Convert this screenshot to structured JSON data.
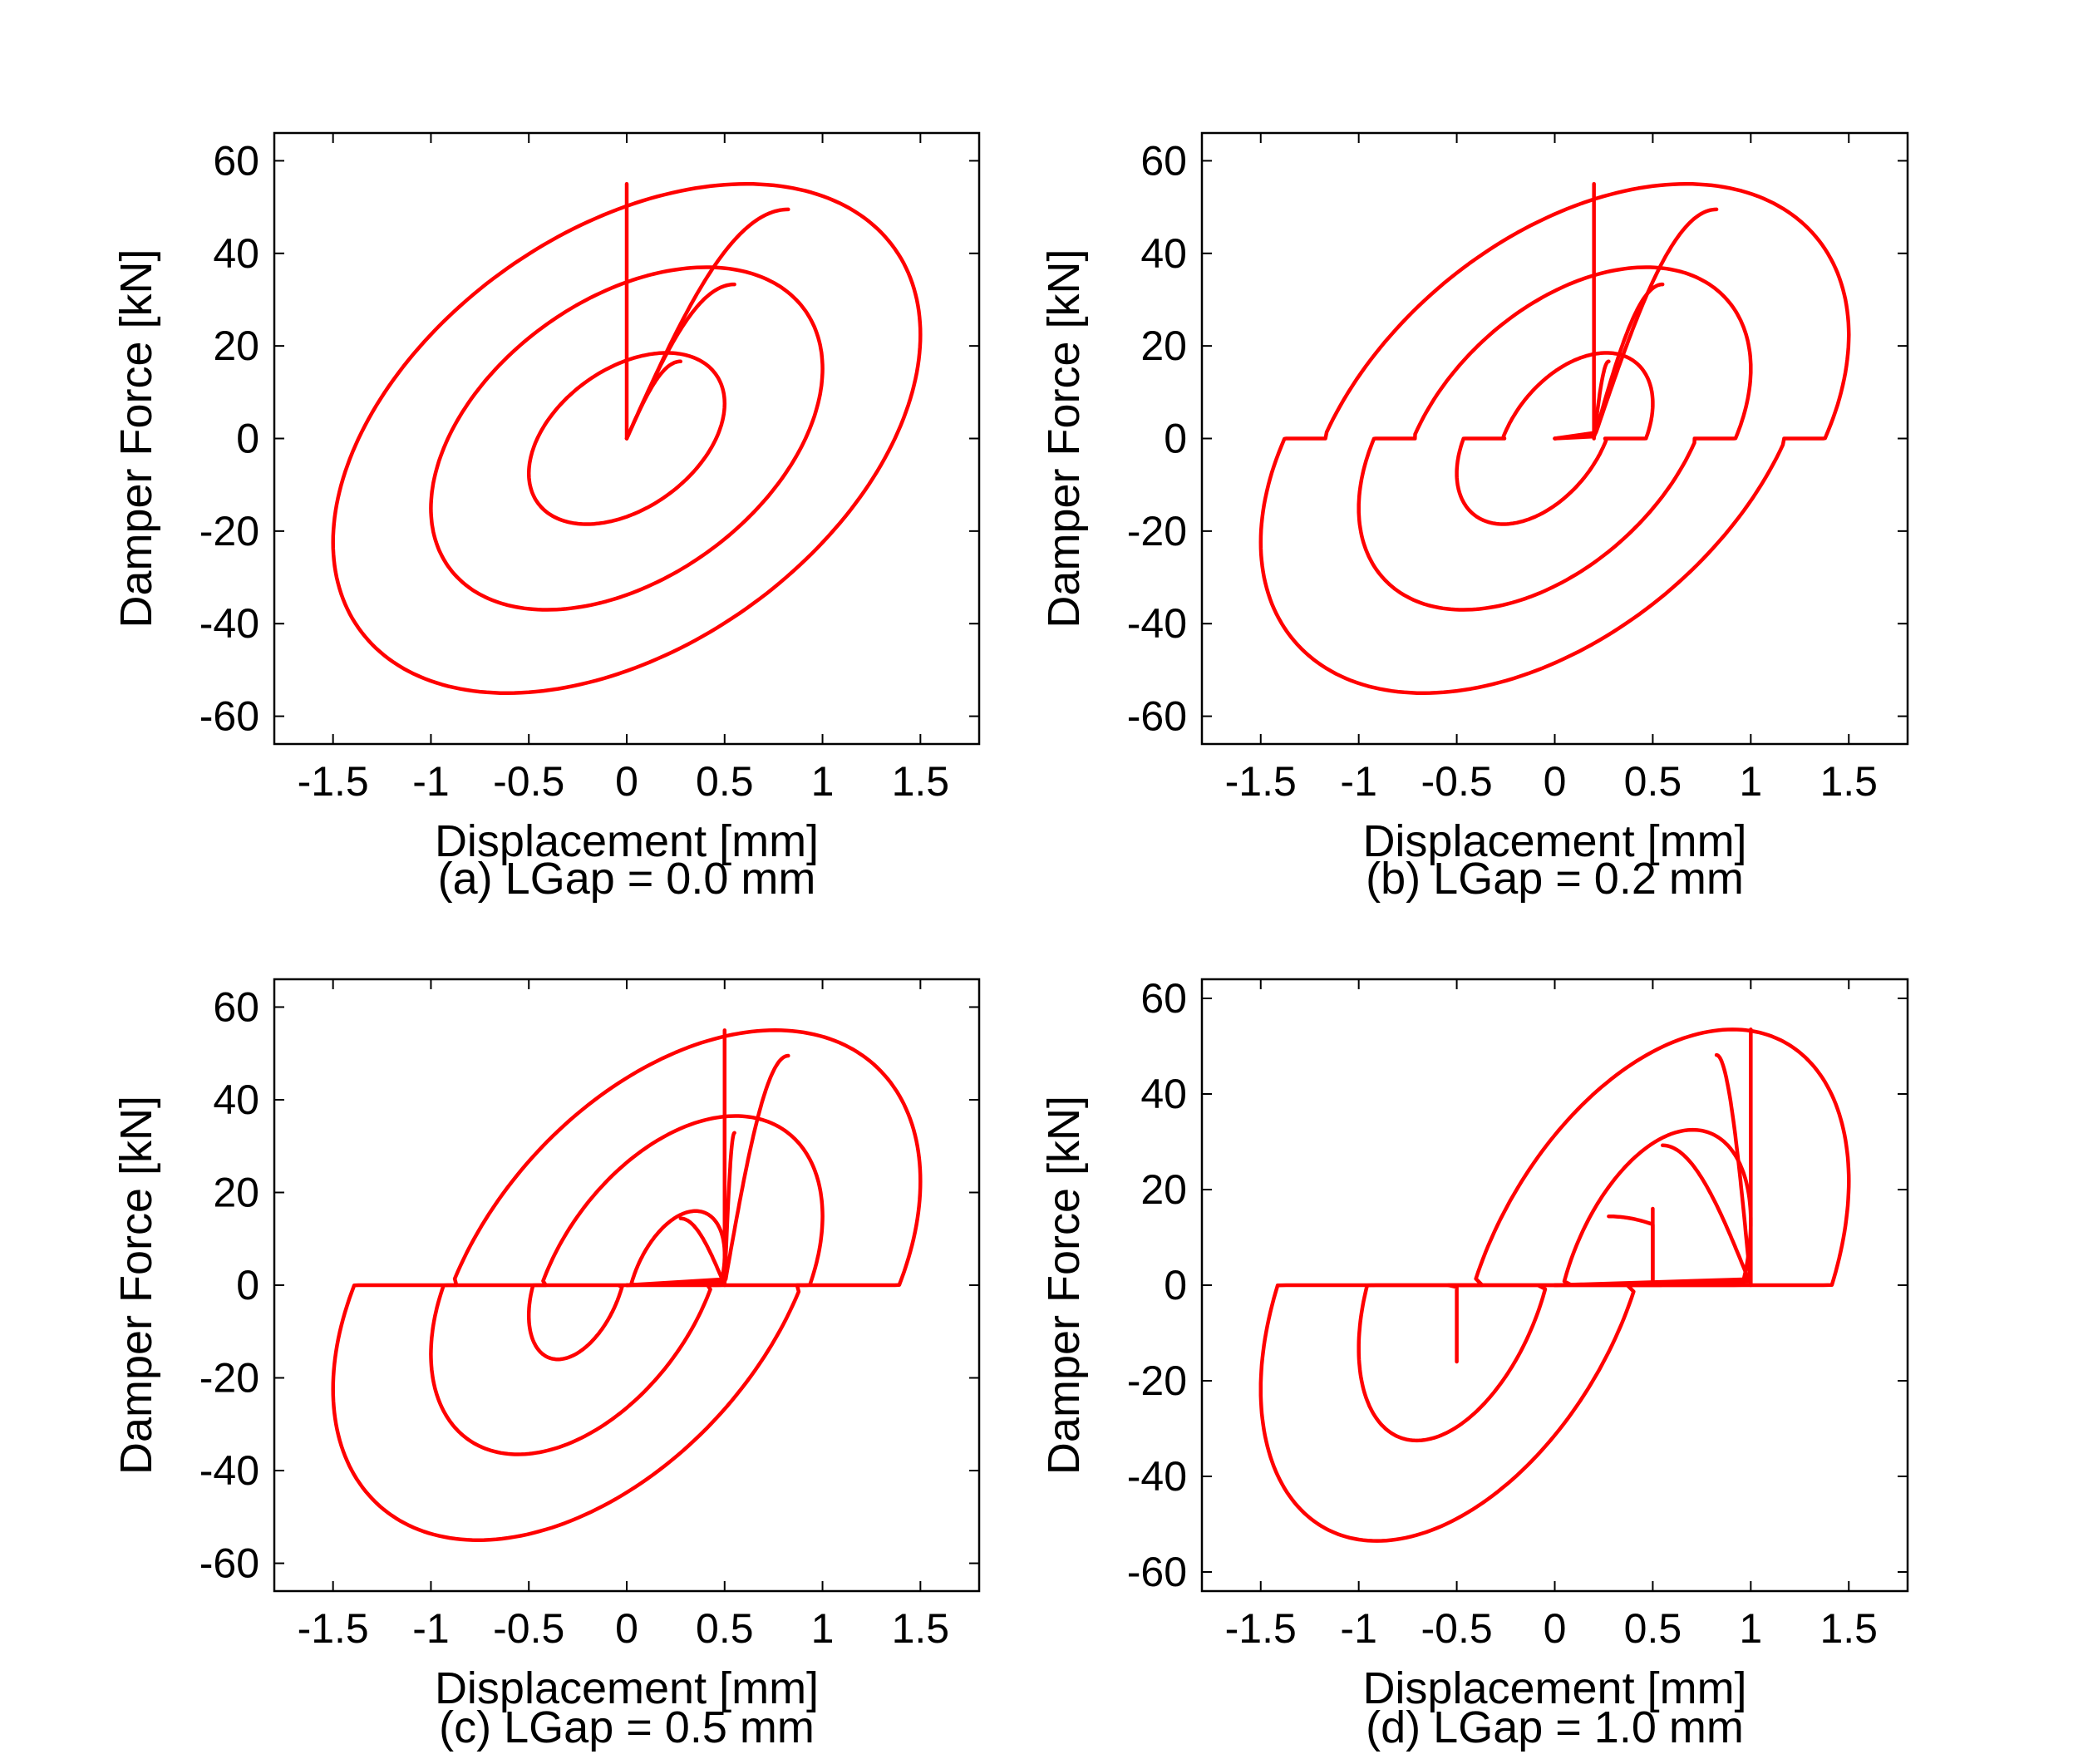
{
  "figure": {
    "line_color": "#ff0000"
  },
  "chart_data": [
    {
      "type": "line",
      "panel": "a",
      "caption": "(a) LGap = 0.0 mm",
      "xlabel": "Displacement [mm]",
      "ylabel": "Damper Force [kN]",
      "xlim": [
        -1.8,
        1.8
      ],
      "ylim": [
        -66,
        66
      ],
      "xticks": [
        -1.5,
        -1,
        -0.5,
        0,
        0.5,
        1,
        1.5
      ],
      "xtick_labels": [
        "-1.5",
        "-1",
        "-0.5",
        "0",
        "0.5",
        "1",
        "1.5"
      ],
      "yticks": [
        60,
        40,
        20,
        0,
        -20,
        -40,
        -60
      ],
      "ytick_labels": [
        "60",
        "40",
        "20",
        "0",
        "-20",
        "-40",
        "-60"
      ],
      "grid": false,
      "legend": "none",
      "lgap": 0.0,
      "series": [
        {
          "amplitude": 0.5,
          "peak_force": 18.5
        },
        {
          "amplitude": 1.0,
          "peak_force": 37
        },
        {
          "amplitude": 1.5,
          "peak_force": 55
        }
      ]
    },
    {
      "type": "line",
      "panel": "b",
      "caption": "(b) LGap = 0.2 mm",
      "xlabel": "Displacement [mm]",
      "ylabel": "Damper Force [kN]",
      "xlim": [
        -1.8,
        1.8
      ],
      "ylim": [
        -66,
        66
      ],
      "xticks": [
        -1.5,
        -1,
        -0.5,
        0,
        0.5,
        1,
        1.5
      ],
      "xtick_labels": [
        "-1.5",
        "-1",
        "-0.5",
        "0",
        "0.5",
        "1",
        "1.5"
      ],
      "yticks": [
        60,
        40,
        20,
        0,
        -20,
        -40,
        -60
      ],
      "ytick_labels": [
        "60",
        "40",
        "20",
        "0",
        "-20",
        "-40",
        "-60"
      ],
      "grid": false,
      "legend": "none",
      "lgap": 0.2,
      "series": [
        {
          "amplitude": 0.5,
          "peak_force": 18.5
        },
        {
          "amplitude": 1.0,
          "peak_force": 37
        },
        {
          "amplitude": 1.5,
          "peak_force": 55
        }
      ]
    },
    {
      "type": "line",
      "panel": "c",
      "caption": "(c) LGap = 0.5 mm",
      "xlabel": "Displacement [mm]",
      "ylabel": "Damper Force [kN]",
      "xlim": [
        -1.8,
        1.8
      ],
      "ylim": [
        -66,
        66
      ],
      "xticks": [
        -1.5,
        -1,
        -0.5,
        0,
        0.5,
        1,
        1.5
      ],
      "xtick_labels": [
        "-1.5",
        "-1",
        "-0.5",
        "0",
        "0.5",
        "1",
        "1.5"
      ],
      "yticks": [
        60,
        40,
        20,
        0,
        -20,
        -40,
        -60
      ],
      "ytick_labels": [
        "60",
        "40",
        "20",
        "0",
        "-20",
        "-40",
        "-60"
      ],
      "grid": false,
      "legend": "none",
      "lgap": 0.5,
      "series": [
        {
          "amplitude": 0.5,
          "peak_force": 16
        },
        {
          "amplitude": 1.0,
          "peak_force": 36.5
        },
        {
          "amplitude": 1.5,
          "peak_force": 55
        }
      ]
    },
    {
      "type": "line",
      "panel": "d",
      "caption": "(d) LGap = 1.0 mm",
      "xlabel": "Displacement [mm]",
      "ylabel": "Damper Force [kN]",
      "xlim": [
        -1.8,
        1.8
      ],
      "ylim": [
        -64,
        64
      ],
      "xticks": [
        -1.5,
        -1,
        -0.5,
        0,
        0.5,
        1,
        1.5
      ],
      "xtick_labels": [
        "-1.5",
        "-1",
        "-0.5",
        "0",
        "0.5",
        "1",
        "1.5"
      ],
      "yticks": [
        60,
        40,
        20,
        0,
        -20,
        -40,
        -60
      ],
      "ytick_labels": [
        "60",
        "40",
        "20",
        "0",
        "-20",
        "-40",
        "-60"
      ],
      "grid": false,
      "legend": "none",
      "lgap": 1.0,
      "series": [
        {
          "amplitude": 0.5,
          "peak_force": 16
        },
        {
          "amplitude": 1.0,
          "peak_force": 32.5
        },
        {
          "amplitude": 1.5,
          "peak_force": 53.5
        }
      ]
    }
  ]
}
